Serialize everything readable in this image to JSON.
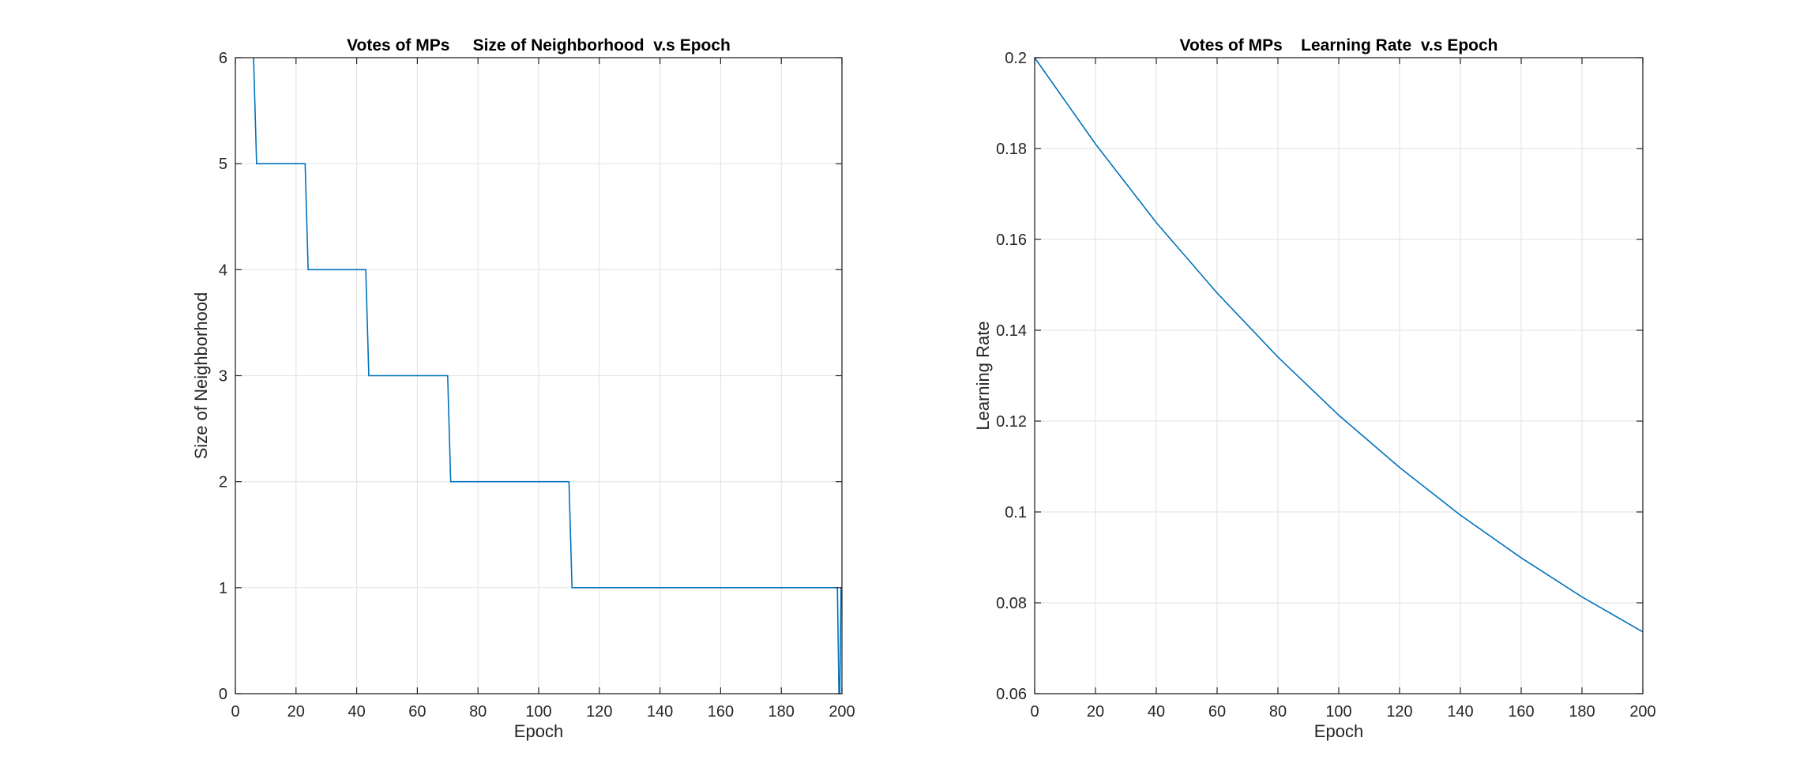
{
  "figure": {
    "background": "#ffffff",
    "line_color": "#0072bd"
  },
  "chart_data": [
    {
      "type": "line",
      "title": "Votes of MPs     Size of Neighborhood  v.s Epoch",
      "xlabel": "Epoch",
      "ylabel": "Size of Neighborhood",
      "xlim": [
        0,
        200
      ],
      "ylim": [
        0,
        6
      ],
      "xticks": [
        0,
        20,
        40,
        60,
        80,
        100,
        120,
        140,
        160,
        180,
        200
      ],
      "yticks": [
        0,
        1,
        2,
        3,
        4,
        5,
        6
      ],
      "ytick_labels": [
        "0",
        "1",
        "2",
        "3",
        "4",
        "5",
        "6"
      ],
      "grid": true,
      "series": [
        {
          "x": [
            6,
            7,
            23,
            24,
            43,
            44,
            70,
            71,
            110,
            111,
            198.5,
            199,
            199.3,
            199.7,
            200
          ],
          "y": [
            6,
            5,
            5,
            4,
            4,
            3,
            3,
            2,
            2,
            1,
            1,
            0,
            0,
            1,
            1
          ]
        }
      ]
    },
    {
      "type": "line",
      "title": "Votes of MPs    Learning Rate  v.s Epoch",
      "xlabel": "Epoch",
      "ylabel": "Learning Rate",
      "xlim": [
        0,
        200
      ],
      "ylim": [
        0.06,
        0.2
      ],
      "xticks": [
        0,
        20,
        40,
        60,
        80,
        100,
        120,
        140,
        160,
        180,
        200
      ],
      "yticks": [
        0.06,
        0.08,
        0.1,
        0.12,
        0.14,
        0.16,
        0.18,
        0.2
      ],
      "ytick_labels": [
        "0.06",
        "0.08",
        "0.1",
        "0.12",
        "0.14",
        "0.16",
        "0.18",
        "0.2"
      ],
      "grid": true,
      "series": [
        {
          "x": [
            0,
            20,
            40,
            60,
            80,
            100,
            120,
            140,
            160,
            180,
            200
          ],
          "y": [
            0.2,
            0.181,
            0.1637,
            0.1482,
            0.1341,
            0.1213,
            0.1098,
            0.0993,
            0.0899,
            0.0813,
            0.0736
          ]
        }
      ]
    }
  ]
}
